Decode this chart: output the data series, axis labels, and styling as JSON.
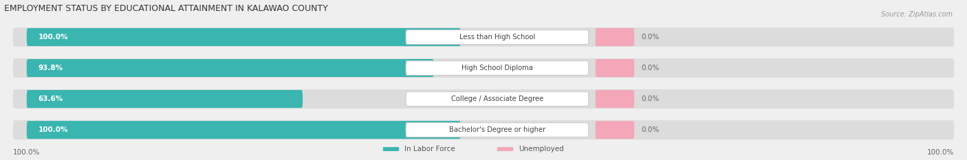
{
  "title": "EMPLOYMENT STATUS BY EDUCATIONAL ATTAINMENT IN KALAWAO COUNTY",
  "source": "Source: ZipAtlas.com",
  "categories": [
    "Less than High School",
    "High School Diploma",
    "College / Associate Degree",
    "Bachelor's Degree or higher"
  ],
  "in_labor_force": [
    100.0,
    93.8,
    63.6,
    100.0
  ],
  "unemployed": [
    0.0,
    0.0,
    0.0,
    0.0
  ],
  "labor_force_color": "#3ab5b0",
  "unemployed_color": "#f4a7b9",
  "background_color": "#efefef",
  "bar_bg_color": "#dcdcdc",
  "bar_height": 0.58,
  "left_axis_label": "100.0%",
  "right_axis_label": "100.0%",
  "title_fontsize": 9,
  "label_fontsize": 7.5,
  "tick_fontsize": 7.5,
  "source_fontsize": 7
}
